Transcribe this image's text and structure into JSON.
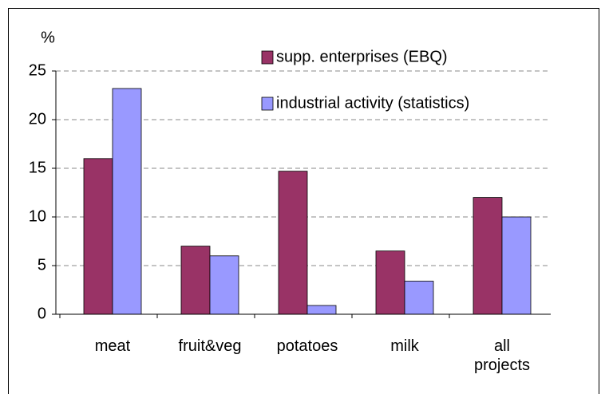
{
  "chart_data": {
    "type": "bar",
    "y_label": "%",
    "categories": [
      "meat",
      "fruit&veg",
      "potatoes",
      "milk",
      "all projects"
    ],
    "series": [
      {
        "name": "supp. enterprises (EBQ)",
        "color": "#993366",
        "values": [
          16,
          7,
          14.7,
          6.5,
          12
        ]
      },
      {
        "name": "industrial activity (statistics)",
        "color": "#9999ff",
        "values": [
          23.2,
          6,
          0.9,
          3.4,
          10
        ]
      }
    ],
    "ylim": [
      0,
      25
    ],
    "yticks": [
      0,
      5,
      10,
      15,
      20,
      25
    ],
    "grid": true,
    "legend": "upper right"
  }
}
